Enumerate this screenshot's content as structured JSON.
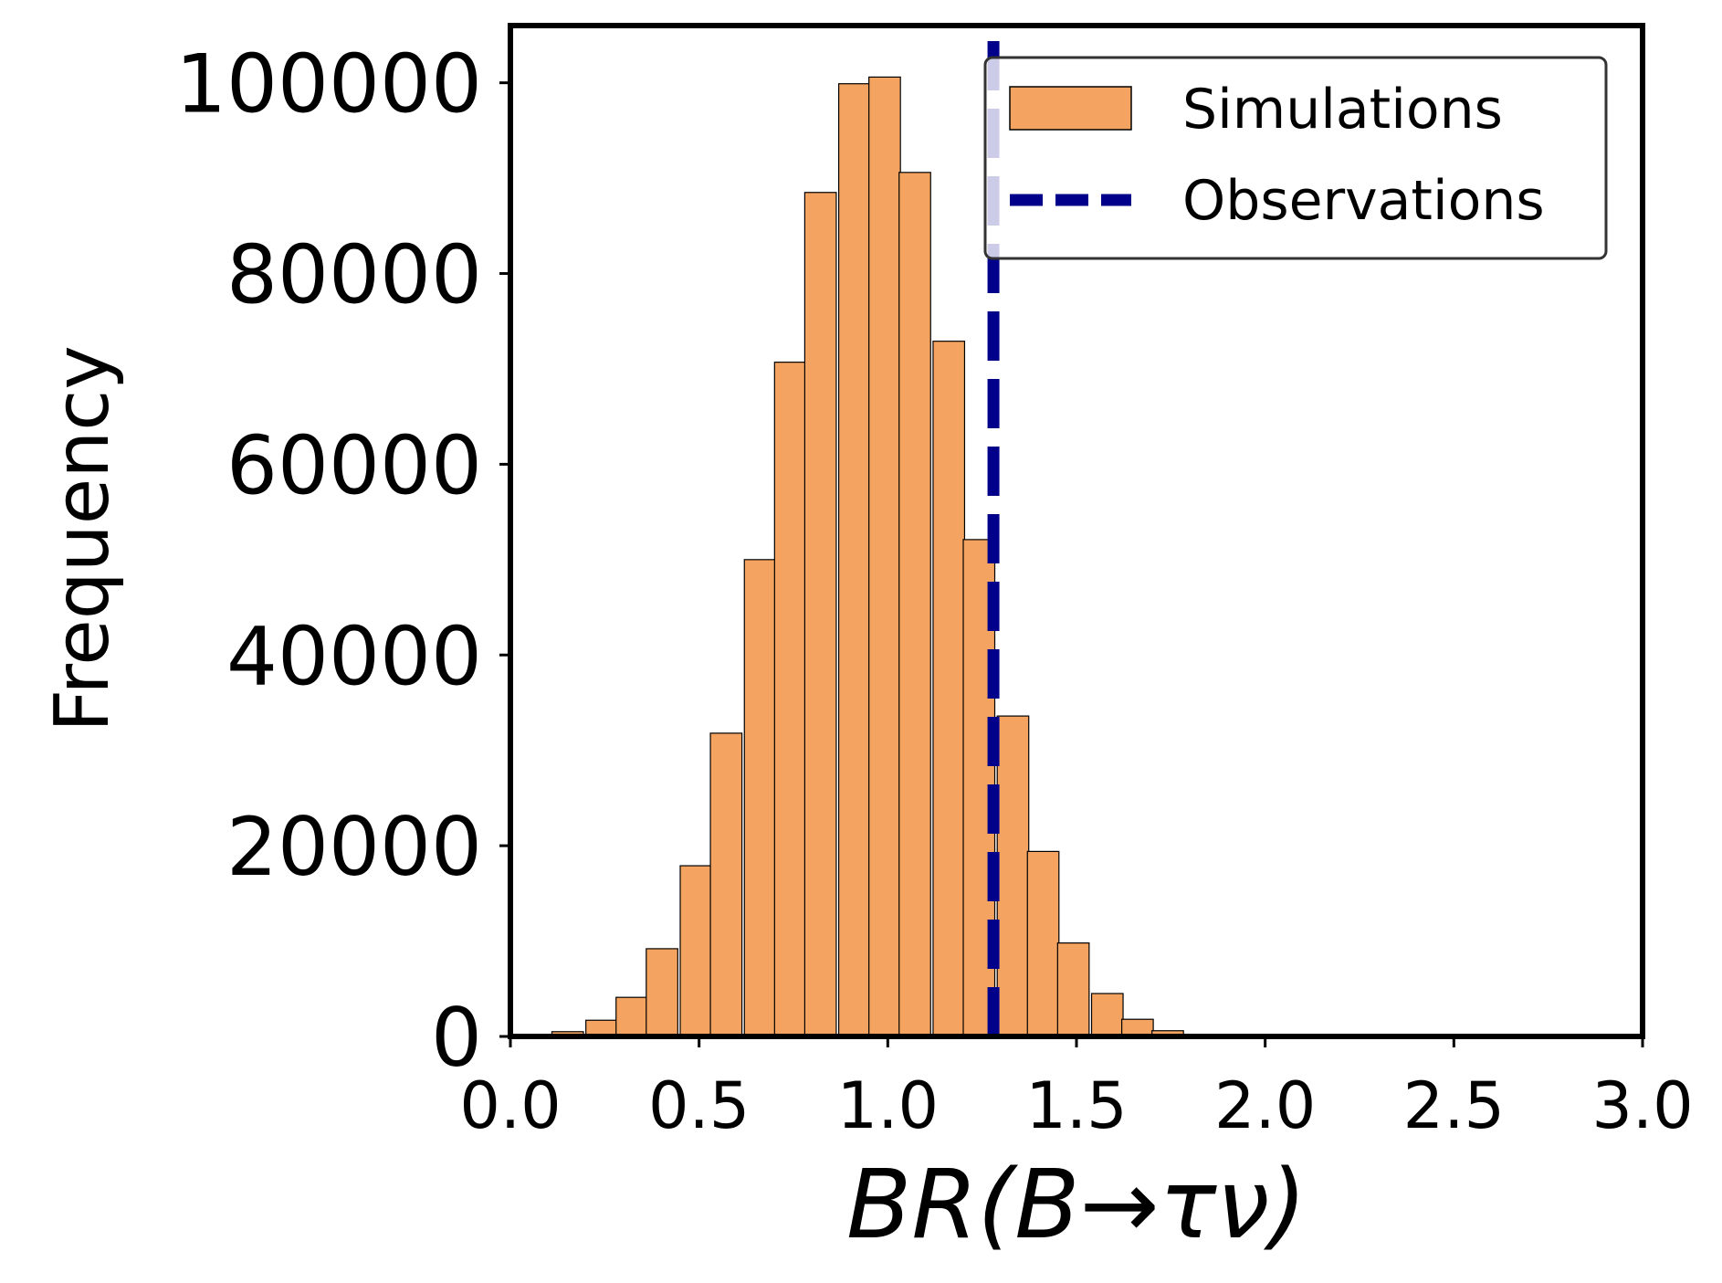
{
  "chart_data": {
    "type": "bar",
    "subtype": "histogram",
    "title": "",
    "xlabel": "BR(B→τν)",
    "ylabel": "Frequency",
    "xlim": [
      0.0,
      3.0
    ],
    "ylim": [
      0,
      106000
    ],
    "x_ticks": [
      0.0,
      0.5,
      1.0,
      1.5,
      2.0,
      2.5,
      3.0
    ],
    "x_tick_labels": [
      "0.0",
      "0.5",
      "1.0",
      "1.5",
      "2.0",
      "2.5",
      "3.0"
    ],
    "y_ticks": [
      0,
      20000,
      40000,
      60000,
      80000,
      100000
    ],
    "y_tick_labels": [
      "0",
      "20000",
      "40000",
      "60000",
      "80000",
      "100000"
    ],
    "grid": false,
    "bin_width": 0.0835,
    "bins": [
      {
        "x0": 0.03,
        "value": 80
      },
      {
        "x0": 0.11,
        "value": 500
      },
      {
        "x0": 0.2,
        "value": 1700
      },
      {
        "x0": 0.28,
        "value": 4100
      },
      {
        "x0": 0.36,
        "value": 9200
      },
      {
        "x0": 0.45,
        "value": 17900
      },
      {
        "x0": 0.53,
        "value": 31800
      },
      {
        "x0": 0.62,
        "value": 50000
      },
      {
        "x0": 0.7,
        "value": 70700
      },
      {
        "x0": 0.78,
        "value": 88500
      },
      {
        "x0": 0.87,
        "value": 99900
      },
      {
        "x0": 0.95,
        "value": 100600
      },
      {
        "x0": 1.03,
        "value": 90600
      },
      {
        "x0": 1.12,
        "value": 72900
      },
      {
        "x0": 1.2,
        "value": 52100
      },
      {
        "x0": 1.29,
        "value": 33600
      },
      {
        "x0": 1.37,
        "value": 19400
      },
      {
        "x0": 1.45,
        "value": 9800
      },
      {
        "x0": 1.54,
        "value": 4500
      },
      {
        "x0": 1.62,
        "value": 1800
      },
      {
        "x0": 1.7,
        "value": 600
      },
      {
        "x0": 1.79,
        "value": 150
      }
    ],
    "observation_x": 1.28,
    "series": [
      {
        "name": "Simulations",
        "type": "histogram",
        "color": "#F4A460"
      },
      {
        "name": "Observations",
        "type": "vline-dashed",
        "color": "#00008B"
      }
    ],
    "legend_placement": "top-right"
  }
}
